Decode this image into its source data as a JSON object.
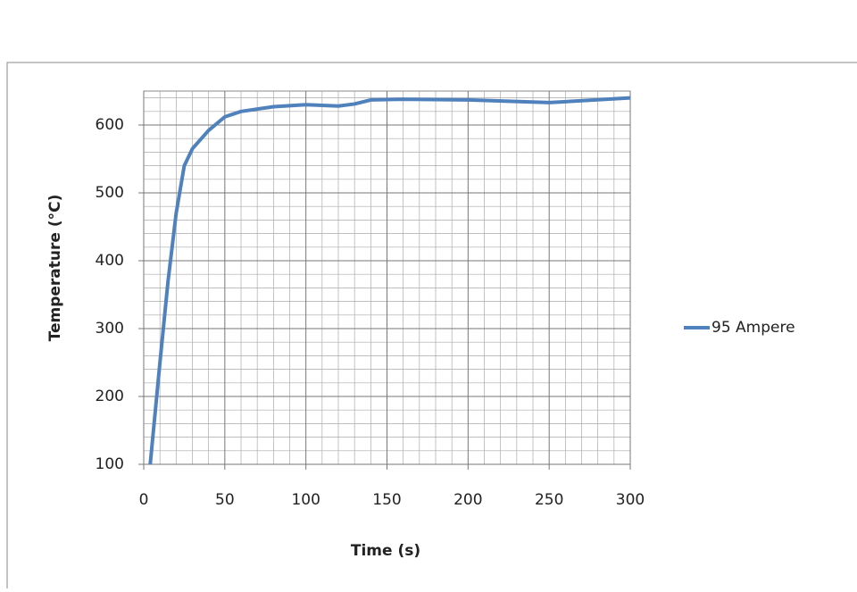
{
  "chart_data": {
    "type": "line",
    "x_label": "Time (s)",
    "y_label": "Temperature (°C)",
    "x": [
      4,
      10,
      15,
      20,
      25,
      30,
      40,
      50,
      60,
      80,
      100,
      120,
      130,
      140,
      160,
      200,
      250,
      300
    ],
    "series": [
      {
        "name": "95 Ampere",
        "color": "#4f81bd",
        "values": [
          100,
          250,
          370,
          470,
          540,
          565,
          592,
          612,
          620,
          627,
          630,
          628,
          631,
          637,
          638,
          637,
          633,
          640
        ]
      }
    ],
    "xlim": [
      0,
      300
    ],
    "xticks": [
      0,
      50,
      100,
      150,
      200,
      250,
      300
    ],
    "ylim": [
      100,
      650
    ],
    "yticks": [
      100,
      200,
      300,
      400,
      500,
      600
    ],
    "grid": true,
    "minor_grid": true,
    "legend": "right"
  }
}
